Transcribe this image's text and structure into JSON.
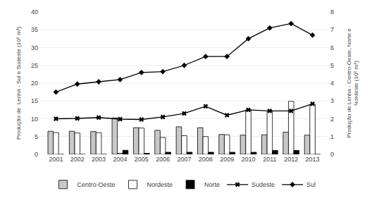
{
  "chart_data": {
    "type": "bar",
    "categories": [
      "2001",
      "2002",
      "2003",
      "2004",
      "2005",
      "2006",
      "2007",
      "2008",
      "2009",
      "2010",
      "2011",
      "2012",
      "2013"
    ],
    "series": [
      {
        "name": "Centro-Oeste",
        "type": "bar",
        "axis": "y2",
        "color": "#c8c8c8",
        "values": [
          1.3,
          1.3,
          1.28,
          2.05,
          1.5,
          1.35,
          1.55,
          1.5,
          1.12,
          1.08,
          1.1,
          1.25,
          1.08
        ]
      },
      {
        "name": "Nordeste",
        "type": "bar",
        "axis": "y2",
        "color": "#ffffff",
        "values": [
          1.22,
          1.2,
          1.22,
          0.06,
          1.48,
          0.95,
          1.05,
          1.0,
          1.1,
          2.5,
          2.45,
          2.98,
          2.82
        ]
      },
      {
        "name": "Norte",
        "type": "bar",
        "axis": "y2",
        "color": "#000000",
        "values": [
          0.0,
          0.0,
          0.0,
          0.23,
          0.06,
          0.12,
          0.12,
          0.12,
          0.12,
          0.12,
          0.22,
          0.22,
          0.0
        ]
      },
      {
        "name": "Sudeste",
        "type": "line",
        "color": "#000000",
        "marker": "x",
        "line_style": "solid",
        "values": [
          10.0,
          10.1,
          10.35,
          9.9,
          9.8,
          10.5,
          11.5,
          13.5,
          11.0,
          12.5,
          12.2,
          12.2,
          14.2
        ]
      },
      {
        "name": "Sul",
        "type": "line",
        "color": "#000000",
        "marker": "diamond",
        "line_style": "solid",
        "values": [
          17.5,
          19.75,
          20.4,
          21.0,
          23.0,
          23.25,
          25.0,
          27.5,
          27.5,
          32.5,
          35.5,
          36.75,
          33.5
        ]
      }
    ],
    "ylabel": "Produção de  Lenha - Sul e Sudeste (10⁶ m³)",
    "y2label": "Produção de Lenha - Centro-Oeste, Norte e\nNordeste (10⁶ m³)",
    "ylim": [
      0,
      40
    ],
    "yticks": [
      0,
      5,
      10,
      15,
      20,
      25,
      30,
      35,
      40
    ],
    "y2lim": [
      0,
      8
    ],
    "y2ticks": [
      0,
      1,
      2,
      3,
      4,
      5,
      6,
      7,
      8
    ],
    "grid": true,
    "legend": "bottom"
  }
}
